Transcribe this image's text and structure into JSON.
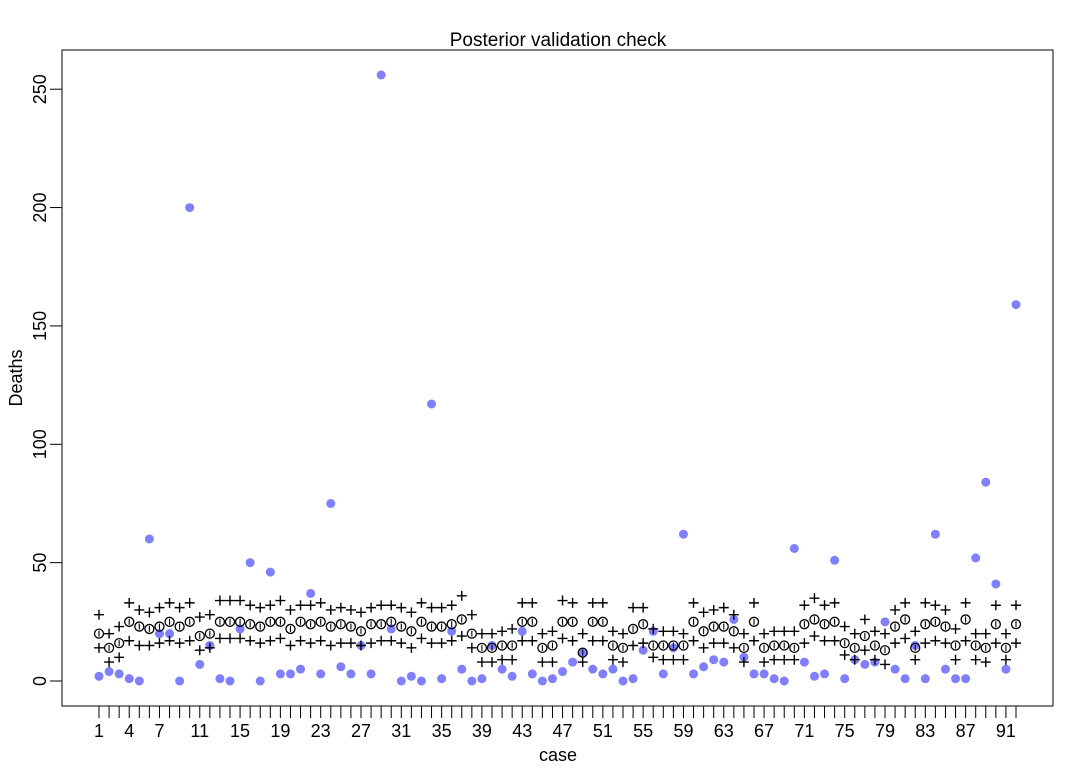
{
  "chart_data": {
    "type": "scatter",
    "title": "Posterior validation check",
    "xlabel": "case",
    "ylabel": "Deaths",
    "xlim": [
      1,
      92
    ],
    "ylim": [
      0,
      256
    ],
    "x_tick_values": [
      1,
      2,
      3,
      4,
      5,
      6,
      7,
      8,
      9,
      10,
      11,
      12,
      13,
      14,
      15,
      16,
      17,
      18,
      19,
      20,
      21,
      22,
      23,
      24,
      25,
      26,
      27,
      28,
      29,
      30,
      31,
      32,
      33,
      34,
      35,
      36,
      37,
      38,
      39,
      40,
      41,
      42,
      43,
      44,
      45,
      46,
      47,
      48,
      49,
      50,
      51,
      52,
      53,
      54,
      55,
      56,
      57,
      58,
      59,
      60,
      61,
      62,
      63,
      64,
      65,
      66,
      67,
      68,
      69,
      70,
      71,
      72,
      73,
      74,
      75,
      76,
      77,
      78,
      79,
      80,
      81,
      82,
      83,
      84,
      85,
      86,
      87,
      88,
      89,
      90,
      91,
      92
    ],
    "x_tick_labels": [
      "1",
      "4",
      "7",
      "11",
      "15",
      "19",
      "23",
      "27",
      "31",
      "35",
      "39",
      "43",
      "47",
      "51",
      "55",
      "59",
      "63",
      "67",
      "71",
      "75",
      "79",
      "83",
      "87",
      "91"
    ],
    "y_tick_labels": [
      "0",
      "50",
      "100",
      "150",
      "200",
      "250"
    ],
    "colors": {
      "observed": "#7f7fff",
      "markers": "#000000"
    },
    "series": [
      {
        "marker": "filled-circle",
        "values": [
          2,
          4,
          3,
          1,
          0,
          60,
          20,
          20,
          0,
          200,
          7,
          15,
          1,
          0,
          22,
          50,
          0,
          46,
          3,
          3,
          5,
          37,
          3,
          75,
          6,
          3,
          15,
          3,
          256,
          22,
          0,
          2,
          0,
          117,
          1,
          21,
          5,
          0,
          1,
          15,
          5,
          2,
          21,
          3,
          0,
          1,
          4,
          8,
          12,
          5,
          3,
          5,
          0,
          1,
          13,
          21,
          3,
          14,
          62,
          3,
          6,
          9,
          8,
          26,
          10,
          3,
          3,
          1,
          0,
          56,
          8,
          2,
          3,
          51,
          1,
          9,
          7,
          8,
          25,
          5,
          1,
          15,
          1,
          62,
          5,
          1,
          1,
          52,
          84,
          41,
          5,
          159
        ]
      },
      {
        "marker": "open-circle",
        "values": [
          20,
          14,
          16,
          25,
          23,
          22,
          23,
          25,
          23,
          25,
          19,
          20,
          25,
          25,
          25,
          24,
          23,
          25,
          25,
          22,
          25,
          24,
          25,
          23,
          24,
          23,
          21,
          24,
          24,
          25,
          23,
          21,
          25,
          23,
          23,
          24,
          26,
          20,
          14,
          14,
          15,
          15,
          25,
          25,
          14,
          15,
          25,
          25,
          12,
          25,
          25,
          15,
          14,
          22,
          24,
          15,
          15,
          15,
          15,
          25,
          21,
          23,
          23,
          21,
          14,
          25,
          14,
          15,
          15,
          14,
          24,
          26,
          24,
          25,
          16,
          14,
          19,
          15,
          13,
          23,
          26,
          14,
          24,
          25,
          23,
          15,
          26,
          15,
          14,
          24,
          14,
          24
        ]
      },
      {
        "marker": "plus",
        "values": [
          28,
          20,
          23,
          33,
          30,
          29,
          31,
          33,
          31,
          33,
          27,
          28,
          34,
          34,
          34,
          32,
          31,
          32,
          34,
          30,
          32,
          32,
          33,
          30,
          31,
          30,
          29,
          31,
          32,
          32,
          31,
          29,
          33,
          31,
          31,
          32,
          36,
          28,
          20,
          20,
          21,
          22,
          33,
          33,
          20,
          21,
          34,
          33,
          20,
          33,
          33,
          21,
          20,
          31,
          31,
          22,
          21,
          21,
          20,
          33,
          29,
          30,
          31,
          28,
          20,
          33,
          20,
          21,
          21,
          21,
          32,
          35,
          32,
          33,
          23,
          20,
          26,
          21,
          20,
          30,
          33,
          21,
          33,
          32,
          30,
          22,
          33,
          20,
          20,
          32,
          20,
          32
        ]
      },
      {
        "marker": "plus",
        "values": [
          14,
          8,
          10,
          17,
          15,
          15,
          16,
          17,
          16,
          17,
          13,
          14,
          18,
          18,
          18,
          17,
          16,
          17,
          18,
          15,
          17,
          16,
          17,
          15,
          16,
          16,
          15,
          16,
          17,
          17,
          16,
          14,
          18,
          16,
          16,
          17,
          19,
          14,
          8,
          8,
          9,
          9,
          17,
          17,
          8,
          8,
          18,
          17,
          8,
          17,
          17,
          9,
          8,
          15,
          16,
          10,
          9,
          9,
          9,
          17,
          14,
          16,
          16,
          14,
          8,
          17,
          8,
          9,
          9,
          9,
          16,
          19,
          17,
          17,
          11,
          9,
          13,
          9,
          7,
          16,
          18,
          9,
          16,
          17,
          16,
          9,
          17,
          9,
          8,
          16,
          9,
          16
        ]
      }
    ]
  }
}
